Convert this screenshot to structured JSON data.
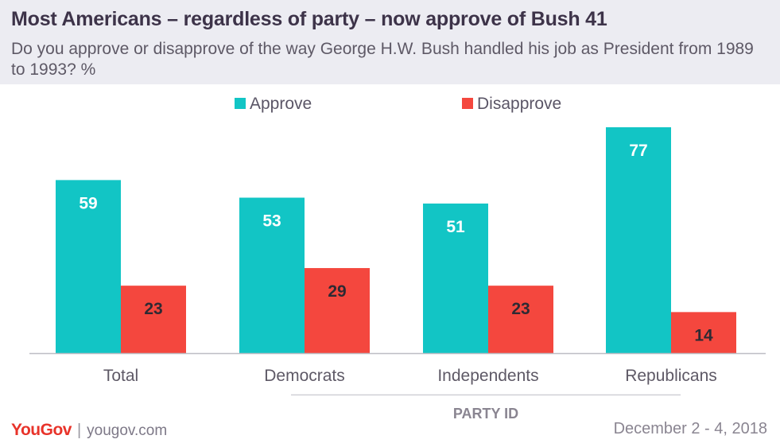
{
  "header": {
    "title": "Most Americans – regardless of party – now approve of Bush 41",
    "subtitle": "Do you approve or disapprove of the way George H.W. Bush handled his job as President from 1989 to 1993? %"
  },
  "chart_data": {
    "type": "bar",
    "categories": [
      "Total",
      "Democrats",
      "Independents",
      "Republicans"
    ],
    "series": [
      {
        "name": "Approve",
        "values": [
          59,
          53,
          51,
          77
        ],
        "color": "#12c5c5"
      },
      {
        "name": "Disapprove",
        "values": [
          23,
          29,
          23,
          14
        ],
        "color": "#f4473e"
      }
    ],
    "group_label": "PARTY ID",
    "group_applies_to": [
      "Democrats",
      "Independents",
      "Republicans"
    ],
    "legend_position": "top",
    "grid": false,
    "ylim": [
      0,
      77
    ]
  },
  "footer": {
    "logo": "YouGov",
    "separator": "|",
    "site": "yougov.com",
    "date": "December 2 - 4, 2018"
  }
}
